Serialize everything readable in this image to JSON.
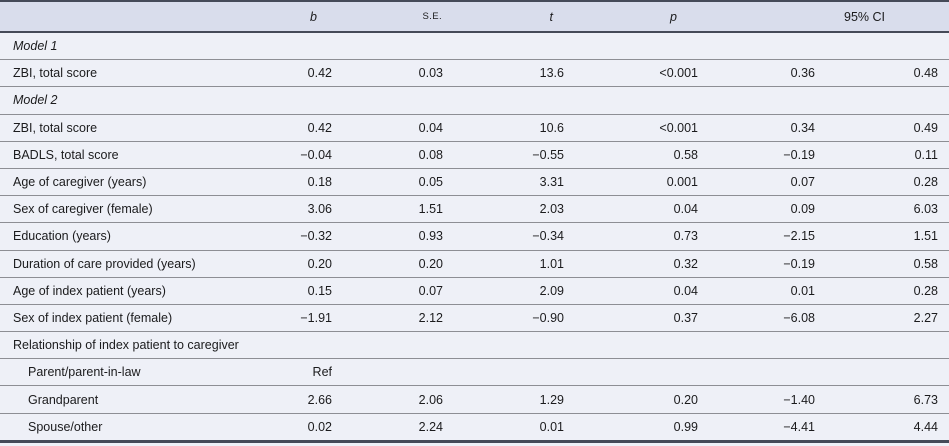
{
  "table": {
    "header": {
      "label": "",
      "b": "b",
      "se": "S.E.",
      "t": "t",
      "p": "p",
      "ci": "95% CI"
    },
    "rows": [
      {
        "type": "model",
        "label": "Model 1"
      },
      {
        "type": "data",
        "indent": false,
        "label": "ZBI, total score",
        "values": [
          "0.42",
          "0.03",
          "13.6",
          "<0.001",
          "0.36",
          "0.48"
        ]
      },
      {
        "type": "model",
        "label": "Model 2"
      },
      {
        "type": "data",
        "indent": false,
        "label": "ZBI, total score",
        "values": [
          "0.42",
          "0.04",
          "10.6",
          "<0.001",
          "0.34",
          "0.49"
        ]
      },
      {
        "type": "data",
        "indent": false,
        "label": "BADLS, total score",
        "values": [
          "−0.04",
          "0.08",
          "−0.55",
          "0.58",
          "−0.19",
          "0.11"
        ]
      },
      {
        "type": "data",
        "indent": false,
        "label": "Age of caregiver (years)",
        "values": [
          "0.18",
          "0.05",
          "3.31",
          "0.001",
          "0.07",
          "0.28"
        ]
      },
      {
        "type": "data",
        "indent": false,
        "label": "Sex of caregiver (female)",
        "values": [
          "3.06",
          "1.51",
          "2.03",
          "0.04",
          "0.09",
          "6.03"
        ]
      },
      {
        "type": "data",
        "indent": false,
        "label": "Education (years)",
        "values": [
          "−0.32",
          "0.93",
          "−0.34",
          "0.73",
          "−2.15",
          "1.51"
        ]
      },
      {
        "type": "data",
        "indent": false,
        "label": "Duration of care provided (years)",
        "values": [
          "0.20",
          "0.20",
          "1.01",
          "0.32",
          "−0.19",
          "0.58"
        ]
      },
      {
        "type": "data",
        "indent": false,
        "label": "Age of index patient (years)",
        "values": [
          "0.15",
          "0.07",
          "2.09",
          "0.04",
          "0.01",
          "0.28"
        ]
      },
      {
        "type": "data",
        "indent": false,
        "label": "Sex of index patient (female)",
        "values": [
          "−1.91",
          "2.12",
          "−0.90",
          "0.37",
          "−6.08",
          "2.27"
        ]
      },
      {
        "type": "group",
        "label": "Relationship of index patient to caregiver"
      },
      {
        "type": "data",
        "indent": true,
        "label": "Parent/parent-in-law",
        "values": [
          "Ref",
          "",
          "",
          "",
          "",
          ""
        ]
      },
      {
        "type": "data",
        "indent": true,
        "label": "Grandparent",
        "values": [
          "2.66",
          "2.06",
          "1.29",
          "0.20",
          "−1.40",
          "6.73"
        ]
      },
      {
        "type": "data",
        "indent": true,
        "label": "Spouse/other",
        "values": [
          "0.02",
          "2.24",
          "0.01",
          "0.99",
          "−4.41",
          "4.44"
        ]
      }
    ],
    "colors": {
      "header_bg": "#d9ddec",
      "row_bg": "#eef0f7",
      "rule_dark": "#454a58",
      "rule_light": "#8d8e94",
      "text": "#1b1b1d"
    }
  }
}
